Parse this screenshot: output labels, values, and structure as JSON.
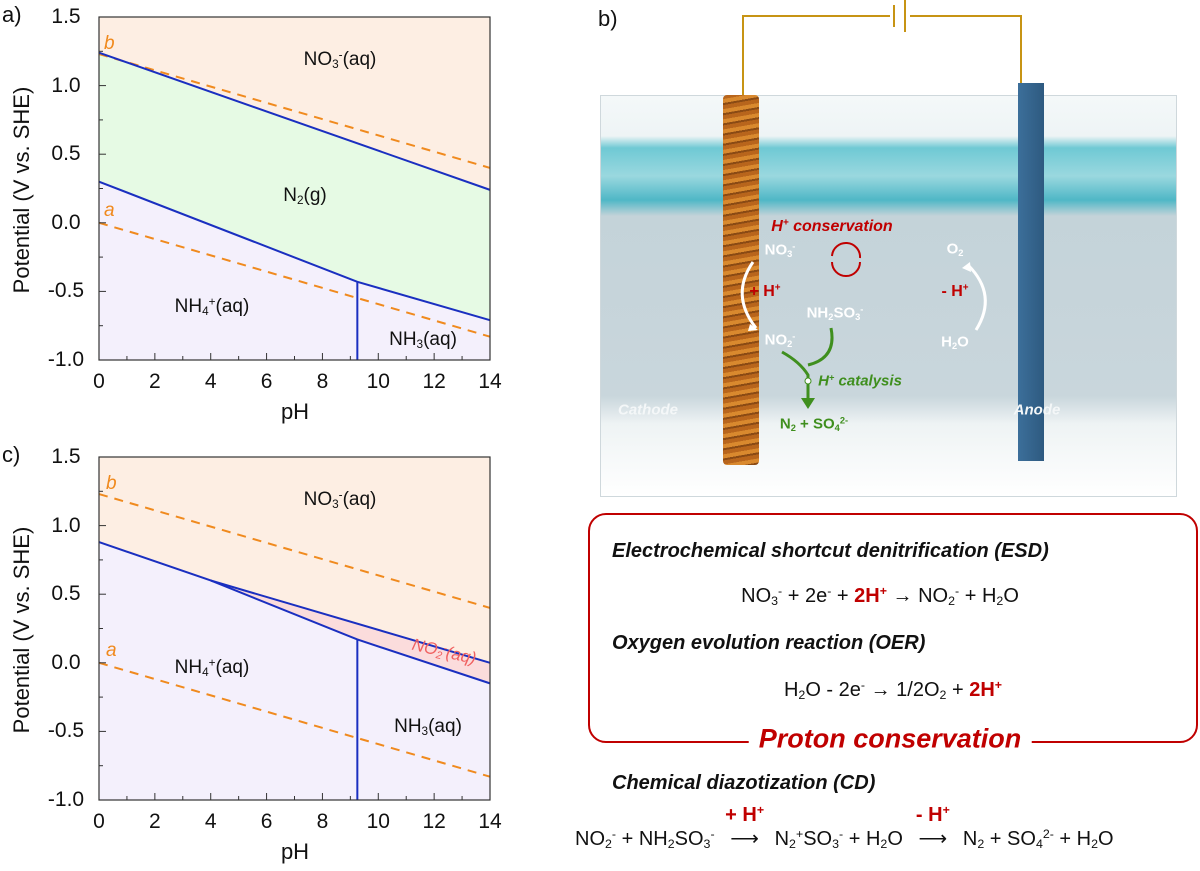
{
  "chart_data": [
    {
      "panel": "a)",
      "type": "area",
      "xlabel": "pH",
      "ylabel": "Potential (V vs. SHE)",
      "xlim": [
        0,
        14
      ],
      "ylim": [
        -1.0,
        1.5
      ],
      "xticks": [
        "0",
        "2",
        "4",
        "6",
        "8",
        "10",
        "12",
        "14"
      ],
      "yticks": [
        "-1.0",
        "-0.5",
        "0.0",
        "0.5",
        "1.0",
        "1.5"
      ],
      "regions": [
        {
          "name": "NO3-(aq)",
          "color": "#fdeee3",
          "polygon": [
            [
              0,
              1.5
            ],
            [
              14,
              1.5
            ],
            [
              14,
              0.24
            ],
            [
              0,
              1.24
            ]
          ]
        },
        {
          "name": "N2(g)",
          "color": "#e6fae4",
          "polygon": [
            [
              0,
              1.24
            ],
            [
              14,
              0.24
            ],
            [
              14,
              -0.71
            ],
            [
              9.25,
              -0.43
            ],
            [
              0,
              0.3
            ]
          ]
        },
        {
          "name": "NH4+(aq)",
          "color": "#f4f0fc",
          "polygon": [
            [
              0,
              0.3
            ],
            [
              9.25,
              -0.43
            ],
            [
              9.25,
              -1.0
            ],
            [
              0,
              -1.0
            ]
          ]
        },
        {
          "name": "NH3(aq)",
          "color": "#f4f0fc",
          "polygon": [
            [
              9.25,
              -0.43
            ],
            [
              14,
              -0.71
            ],
            [
              14,
              -1.0
            ],
            [
              9.25,
              -1.0
            ]
          ]
        }
      ],
      "boundaries": [
        [
          [
            0,
            1.24
          ],
          [
            14,
            0.24
          ]
        ],
        [
          [
            0,
            0.3
          ],
          [
            9.25,
            -0.43
          ],
          [
            14,
            -0.71
          ]
        ],
        [
          [
            9.25,
            -1.0
          ],
          [
            9.25,
            -0.43
          ]
        ]
      ],
      "dashed": [
        {
          "name": "b",
          "points": [
            [
              0,
              1.23
            ],
            [
              14,
              0.4
            ]
          ]
        },
        {
          "name": "a",
          "points": [
            [
              0,
              0.0
            ],
            [
              14,
              -0.83
            ]
          ]
        }
      ],
      "labels": {
        "no3": [
          [
            "NO"
          ],
          [
            "3",
            "sub"
          ],
          [
            "-",
            "sup"
          ],
          [
            "(aq)"
          ]
        ],
        "n2": [
          [
            "N"
          ],
          [
            "2",
            "sub"
          ],
          [
            "(g)"
          ]
        ],
        "nh4": [
          [
            "NH"
          ],
          [
            "4",
            "sub"
          ],
          [
            "+",
            "sup"
          ],
          [
            "(aq)"
          ]
        ],
        "nh3": [
          [
            "NH"
          ],
          [
            "3",
            "sub"
          ],
          [
            "(aq)"
          ]
        ],
        "b": "b",
        "a": "a"
      }
    },
    {
      "panel": "c)",
      "type": "area",
      "xlabel": "pH",
      "ylabel": "Potential (V vs. SHE)",
      "xlim": [
        0,
        14
      ],
      "ylim": [
        -1.0,
        1.5
      ],
      "xticks": [
        "0",
        "2",
        "4",
        "6",
        "8",
        "10",
        "12",
        "14"
      ],
      "yticks": [
        "-1.0",
        "-0.5",
        "0.0",
        "0.5",
        "1.0",
        "1.5"
      ],
      "regions": [
        {
          "name": "NO3-(aq)",
          "color": "#fdeee3",
          "polygon": [
            [
              0,
              1.5
            ],
            [
              14,
              1.5
            ],
            [
              14,
              0.0
            ],
            [
              4,
              0.6
            ],
            [
              0,
              0.88
            ]
          ]
        },
        {
          "name": "NO2-(aq)",
          "color": "#fbdcdc",
          "polygon": [
            [
              4,
              0.6
            ],
            [
              14,
              0.0
            ],
            [
              14,
              -0.15
            ],
            [
              9.25,
              0.17
            ]
          ]
        },
        {
          "name": "NH4+(aq)",
          "color": "#f4f0fc",
          "polygon": [
            [
              0,
              0.88
            ],
            [
              4,
              0.6
            ],
            [
              9.25,
              0.17
            ],
            [
              9.25,
              -1.0
            ],
            [
              0,
              -1.0
            ]
          ]
        },
        {
          "name": "NH3(aq)",
          "color": "#f4f0fc",
          "polygon": [
            [
              9.25,
              0.17
            ],
            [
              14,
              -0.15
            ],
            [
              14,
              -1.0
            ],
            [
              9.25,
              -1.0
            ]
          ]
        }
      ],
      "boundaries": [
        [
          [
            0,
            0.88
          ],
          [
            4,
            0.6
          ],
          [
            9.25,
            0.17
          ],
          [
            14,
            -0.15
          ]
        ],
        [
          [
            4,
            0.6
          ],
          [
            14,
            0.0
          ]
        ],
        [
          [
            9.25,
            -1.0
          ],
          [
            9.25,
            0.17
          ]
        ]
      ],
      "dashed": [
        {
          "name": "b",
          "points": [
            [
              0,
              1.23
            ],
            [
              14,
              0.4
            ]
          ]
        },
        {
          "name": "a",
          "points": [
            [
              0,
              0.0
            ],
            [
              14,
              -0.83
            ]
          ]
        }
      ],
      "labels": {
        "no3": [
          [
            "NO"
          ],
          [
            "3",
            "sub"
          ],
          [
            "-",
            "sup"
          ],
          [
            "(aq)"
          ]
        ],
        "nh4": [
          [
            "NH"
          ],
          [
            "4",
            "sub"
          ],
          [
            "+",
            "sup"
          ],
          [
            "(aq)"
          ]
        ],
        "nh3": [
          [
            "NH"
          ],
          [
            "3",
            "sub"
          ],
          [
            "(aq)"
          ]
        ],
        "no2": [
          [
            "NO"
          ],
          [
            "2",
            "sub"
          ],
          [
            "-",
            "sup"
          ],
          [
            "(aq)"
          ]
        ],
        "b": "b",
        "a": "a"
      }
    }
  ],
  "colors": {
    "boundary": "#1a2fc0",
    "dashed": "#f08a1e",
    "no2_label": "#f06060",
    "accent_red": "#c00000",
    "green": "#3f8f1e"
  },
  "scene": {
    "panel": "b)",
    "h_conservation": [
      [
        "H"
      ],
      [
        "+",
        "sup"
      ],
      [
        " conservation"
      ]
    ],
    "no3": [
      [
        "NO"
      ],
      [
        "3",
        "sub"
      ],
      [
        "-",
        "sup"
      ]
    ],
    "plus_h": [
      [
        "+ H"
      ],
      [
        "+",
        "sup"
      ]
    ],
    "nh2so3": [
      [
        "NH"
      ],
      [
        "2",
        "sub"
      ],
      [
        "SO"
      ],
      [
        "3",
        "sub"
      ],
      [
        "-",
        "sup"
      ]
    ],
    "no2": [
      [
        "NO"
      ],
      [
        "2",
        "sub"
      ],
      [
        "-",
        "sup"
      ]
    ],
    "h_catalysis": [
      [
        "H"
      ],
      [
        "+",
        "sup"
      ],
      [
        " catalysis"
      ]
    ],
    "products": [
      [
        "N"
      ],
      [
        "2",
        "sub"
      ],
      [
        " + SO"
      ],
      [
        "4",
        "sub"
      ],
      [
        "2-",
        "sup"
      ]
    ],
    "o2": [
      [
        "O"
      ],
      [
        "2",
        "sub"
      ]
    ],
    "minus_h": [
      [
        "- H"
      ],
      [
        "+",
        "sup"
      ]
    ],
    "h2o": [
      [
        "H"
      ],
      [
        "2",
        "sub"
      ],
      [
        "O"
      ]
    ],
    "cathode": "Cathode",
    "anode": "Anode"
  },
  "reactions": {
    "esd_title": "Electrochemical shortcut denitrification (ESD)",
    "esd_eq": [
      [
        "NO"
      ],
      [
        "3",
        "sub"
      ],
      [
        "-",
        "sup"
      ],
      [
        " + 2e"
      ],
      [
        "-",
        "sup"
      ],
      [
        " + "
      ],
      [
        "2H",
        "red"
      ],
      [
        "+",
        "redsup"
      ],
      [
        " → NO"
      ],
      [
        "2",
        "sub"
      ],
      [
        "-",
        "sup"
      ],
      [
        " + H"
      ],
      [
        "2",
        "sub"
      ],
      [
        "O"
      ]
    ],
    "oer_title": "Oxygen evolution reaction (OER)",
    "oer_eq": [
      [
        "H"
      ],
      [
        "2",
        "sub"
      ],
      [
        "O - 2e"
      ],
      [
        "-",
        "sup"
      ],
      [
        " → 1/2O"
      ],
      [
        "2",
        "sub"
      ],
      [
        "  + "
      ],
      [
        "2H",
        "red"
      ],
      [
        "+",
        "redsup"
      ]
    ],
    "proton_conservation": "Proton conservation",
    "cd_title": "Chemical diazotization (CD)",
    "cd_eq_part1": [
      [
        "NO"
      ],
      [
        "2",
        "sub"
      ],
      [
        "-",
        "sup"
      ],
      [
        " + NH"
      ],
      [
        "2",
        "sub"
      ],
      [
        "SO"
      ],
      [
        "3",
        "sub"
      ],
      [
        "-",
        "sup"
      ]
    ],
    "cd_arrow1_label": [
      [
        "+ H"
      ],
      [
        "+",
        "sup"
      ]
    ],
    "cd_eq_part2": [
      [
        "N"
      ],
      [
        "2",
        "sub"
      ],
      [
        "+",
        "sup"
      ],
      [
        "SO"
      ],
      [
        "3",
        "sub"
      ],
      [
        "-",
        "sup"
      ],
      [
        " + H"
      ],
      [
        "2",
        "sub"
      ],
      [
        "O"
      ]
    ],
    "cd_arrow2_label": [
      [
        "- H"
      ],
      [
        "+",
        "sup"
      ]
    ],
    "cd_eq_part3": [
      [
        "N"
      ],
      [
        "2",
        "sub"
      ],
      [
        " + SO"
      ],
      [
        "4",
        "sub"
      ],
      [
        "2-",
        "sup"
      ],
      [
        " + H"
      ],
      [
        "2",
        "sub"
      ],
      [
        "O"
      ]
    ]
  }
}
